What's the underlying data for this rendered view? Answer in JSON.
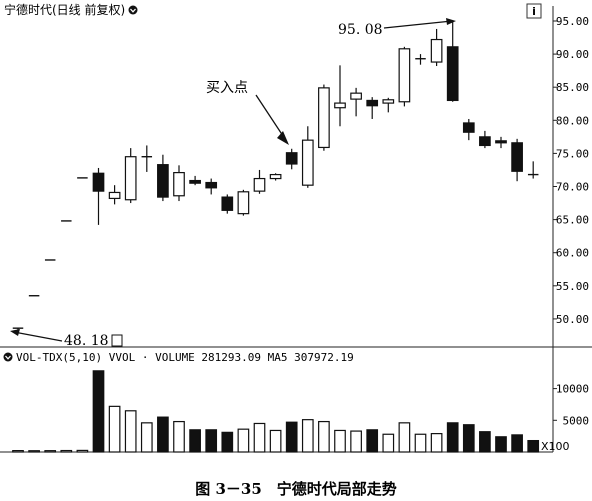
{
  "header": {
    "title": "宁德时代(日线 前复权)"
  },
  "caption": "图 3－35　宁德时代局部走势",
  "chart_data": [
    {
      "type": "candlestick",
      "title": "宁德时代(日线 前复权)",
      "ylim": [
        45,
        97
      ],
      "y_ticks": [
        "95.00",
        "90.00",
        "85.00",
        "80.00",
        "75.00",
        "70.00",
        "65.00",
        "60.00",
        "55.00",
        "50.00"
      ],
      "y_tick_values": [
        95,
        90,
        85,
        80,
        75,
        70,
        65,
        60,
        55,
        50
      ],
      "annotations": {
        "buy_point": "买入点",
        "high_label": "95. 08",
        "low_label": "48. 18"
      },
      "candles": [
        {
          "o": 48.6,
          "h": 48.6,
          "l": 48.18,
          "c": 48.6
        },
        {
          "o": 53.5,
          "h": 53.5,
          "l": 53.5,
          "c": 53.5
        },
        {
          "o": 58.9,
          "h": 58.9,
          "l": 58.9,
          "c": 58.9
        },
        {
          "o": 64.8,
          "h": 64.8,
          "l": 64.8,
          "c": 64.8
        },
        {
          "o": 71.3,
          "h": 71.3,
          "l": 71.3,
          "c": 71.3
        },
        {
          "o": 72.0,
          "h": 72.8,
          "l": 64.2,
          "c": 69.3
        },
        {
          "o": 68.2,
          "h": 70.2,
          "l": 67.3,
          "c": 69.1
        },
        {
          "o": 68.0,
          "h": 75.8,
          "l": 67.5,
          "c": 74.5
        },
        {
          "o": 74.5,
          "h": 76.2,
          "l": 72.2,
          "c": 74.5
        },
        {
          "o": 73.3,
          "h": 74.8,
          "l": 67.8,
          "c": 68.4
        },
        {
          "o": 68.6,
          "h": 73.2,
          "l": 67.8,
          "c": 72.1
        },
        {
          "o": 70.9,
          "h": 71.6,
          "l": 70.2,
          "c": 70.5
        },
        {
          "o": 70.6,
          "h": 71.2,
          "l": 68.8,
          "c": 69.8
        },
        {
          "o": 68.4,
          "h": 68.8,
          "l": 65.9,
          "c": 66.4
        },
        {
          "o": 65.9,
          "h": 69.5,
          "l": 65.6,
          "c": 69.2
        },
        {
          "o": 69.3,
          "h": 72.5,
          "l": 68.9,
          "c": 71.2
        },
        {
          "o": 71.2,
          "h": 72.0,
          "l": 70.9,
          "c": 71.8
        },
        {
          "o": 75.1,
          "h": 75.7,
          "l": 72.6,
          "c": 73.4
        },
        {
          "o": 70.2,
          "h": 79.1,
          "l": 69.8,
          "c": 77.0
        },
        {
          "o": 75.9,
          "h": 85.4,
          "l": 75.4,
          "c": 84.9
        },
        {
          "o": 81.9,
          "h": 88.3,
          "l": 79.1,
          "c": 82.6
        },
        {
          "o": 83.2,
          "h": 84.9,
          "l": 80.6,
          "c": 84.1
        },
        {
          "o": 83.0,
          "h": 83.5,
          "l": 80.2,
          "c": 82.2
        },
        {
          "o": 82.6,
          "h": 83.4,
          "l": 81.2,
          "c": 83.1
        },
        {
          "o": 82.8,
          "h": 91.1,
          "l": 82.1,
          "c": 90.8
        },
        {
          "o": 89.3,
          "h": 90.0,
          "l": 88.4,
          "c": 89.3
        },
        {
          "o": 88.8,
          "h": 93.8,
          "l": 88.2,
          "c": 92.2
        },
        {
          "o": 91.1,
          "h": 95.08,
          "l": 82.8,
          "c": 83.0
        },
        {
          "o": 79.6,
          "h": 80.2,
          "l": 77.0,
          "c": 78.2
        },
        {
          "o": 77.5,
          "h": 78.4,
          "l": 75.8,
          "c": 76.2
        },
        {
          "o": 76.9,
          "h": 77.5,
          "l": 75.8,
          "c": 76.6
        },
        {
          "o": 76.6,
          "h": 77.2,
          "l": 70.8,
          "c": 72.3
        },
        {
          "o": 71.8,
          "h": 73.8,
          "l": 71.2,
          "c": 71.7
        }
      ]
    },
    {
      "type": "bar",
      "title": "VOL-TDX(5,10) VVOL · VOLUME 281293.09 MA5 307972.19",
      "unit_label": "X100",
      "ylim": [
        0,
        14000
      ],
      "y_ticks": [
        "10000",
        "5000"
      ],
      "y_tick_values": [
        10000,
        5000
      ],
      "values": [
        220,
        200,
        210,
        230,
        250,
        12800,
        7200,
        6500,
        4600,
        5500,
        4800,
        3500,
        3500,
        3100,
        3600,
        4500,
        3400,
        4700,
        5100,
        4800,
        3400,
        3300,
        3500,
        2800,
        4600,
        2800,
        2900,
        4600,
        4300,
        3200,
        2400,
        2700,
        1800
      ]
    }
  ]
}
